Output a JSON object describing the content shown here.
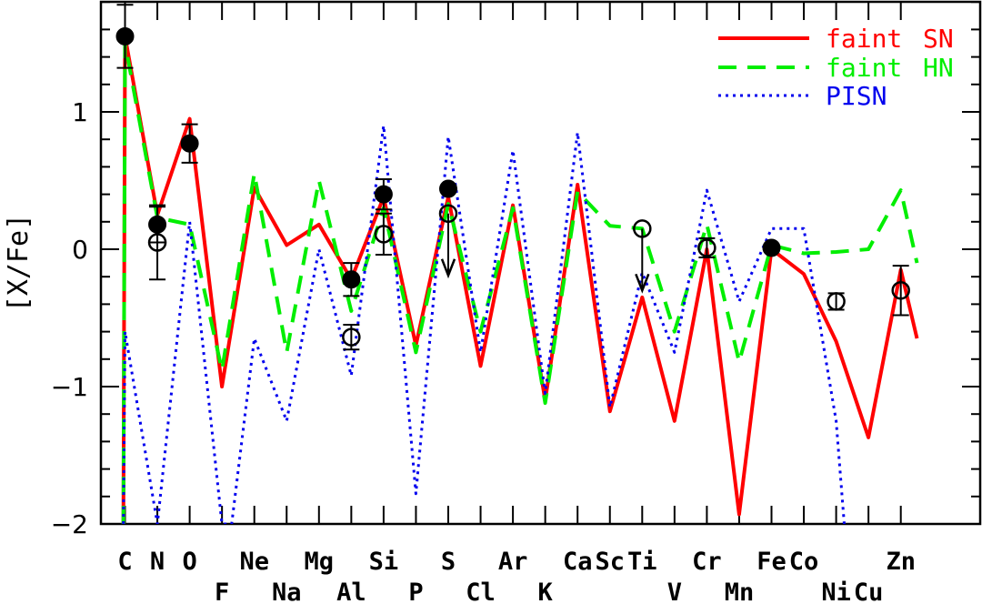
{
  "chart_data": {
    "type": "line",
    "title": "",
    "xlabel": "",
    "ylabel": "[X/Fe]",
    "ylim": [
      -2,
      1.8
    ],
    "yticks": [
      -2,
      -1,
      0,
      1
    ],
    "yticklabels": [
      "−2",
      "−1",
      "0",
      "1"
    ],
    "elements": [
      "C",
      "N",
      "O",
      "F",
      "Ne",
      "Na",
      "Mg",
      "Al",
      "Si",
      "P",
      "S",
      "Cl",
      "Ar",
      "K",
      "Ca",
      "Sc",
      "Ti",
      "V",
      "Cr",
      "Mn",
      "Fe",
      "Co",
      "Ni",
      "Cu",
      "Zn"
    ],
    "z": [
      6,
      7,
      8,
      9,
      10,
      11,
      12,
      13,
      14,
      15,
      16,
      17,
      18,
      19,
      20,
      21,
      22,
      23,
      24,
      25,
      26,
      27,
      28,
      29,
      30
    ],
    "top_row_labels": [
      "C",
      "N",
      "O",
      "Ne",
      "Mg",
      "Si",
      "S",
      "Ar",
      "Ca",
      "Sc",
      "Ti",
      "Cr",
      "Fe",
      "Co",
      "Zn"
    ],
    "bottom_row_labels": [
      "F",
      "Na",
      "Al",
      "P",
      "Cl",
      "K",
      "V",
      "Mn",
      "Ni",
      "Cu"
    ],
    "series": [
      {
        "name": "faint SN",
        "color": "#ff0000",
        "style": "solid",
        "x": [
          5.95,
          6,
          7,
          8,
          9,
          10,
          11,
          12,
          13,
          14,
          15,
          16,
          17,
          18,
          19,
          20,
          21,
          22,
          23,
          24,
          25,
          26,
          27,
          28,
          29,
          30,
          30.5
        ],
        "y": [
          -2.0,
          1.55,
          0.25,
          0.95,
          -1.0,
          0.45,
          0.03,
          0.18,
          -0.22,
          0.38,
          -0.7,
          0.38,
          -0.85,
          0.32,
          -1.1,
          0.47,
          -1.18,
          -0.35,
          -1.25,
          0.0,
          -1.93,
          0.0,
          -0.18,
          -0.67,
          -1.37,
          -0.15,
          -0.65
        ]
      },
      {
        "name": "faint HN",
        "color": "#00ee00",
        "style": "dashed",
        "x": [
          5.95,
          6,
          7,
          8,
          9,
          10,
          11,
          12,
          13,
          14,
          15,
          16,
          17,
          18,
          19,
          20,
          21,
          22,
          23,
          24,
          25,
          26,
          27,
          28,
          29,
          30,
          30.5
        ],
        "y": [
          -2.0,
          1.5,
          0.23,
          0.18,
          -0.88,
          0.55,
          -0.75,
          0.5,
          -0.45,
          0.3,
          -0.75,
          0.33,
          -0.6,
          0.3,
          -1.12,
          0.42,
          0.17,
          0.15,
          -0.6,
          0.18,
          -0.82,
          0.03,
          -0.03,
          -0.02,
          0.0,
          0.43,
          -0.1
        ]
      },
      {
        "name": "PISN",
        "color": "#0000ee",
        "style": "dotted",
        "x": [
          5.95,
          6,
          7,
          8,
          9,
          9.3,
          10,
          11,
          12,
          13,
          14,
          15,
          16,
          17,
          18,
          19,
          20,
          21,
          22,
          23,
          24,
          25,
          26,
          27,
          28,
          28.25
        ],
        "y": [
          -2.0,
          -0.6,
          -2.0,
          0.2,
          -2.0,
          -2.0,
          -0.65,
          -1.25,
          0.0,
          -0.92,
          0.9,
          -1.78,
          0.82,
          -0.75,
          0.72,
          -1.05,
          0.85,
          -1.15,
          -0.17,
          -0.75,
          0.43,
          -0.38,
          0.15,
          0.15,
          -1.25,
          -2.0
        ]
      }
    ],
    "observations": [
      {
        "element": "C",
        "z": 6,
        "y": 1.55,
        "err": 0.23,
        "symbol": "filled"
      },
      {
        "element": "N",
        "z": 7,
        "y": 0.18,
        "err": 0.13,
        "symbol": "filled"
      },
      {
        "element": "N",
        "z": 7,
        "y": 0.05,
        "err": 0.27,
        "symbol": "open"
      },
      {
        "element": "O",
        "z": 8,
        "y": 0.77,
        "err": 0.14,
        "symbol": "filled"
      },
      {
        "element": "Al",
        "z": 13,
        "y": -0.22,
        "err": 0.12,
        "symbol": "filled"
      },
      {
        "element": "Al",
        "z": 13,
        "y": -0.64,
        "err": 0.09,
        "symbol": "open"
      },
      {
        "element": "Si",
        "z": 14,
        "y": 0.4,
        "err": 0.11,
        "symbol": "filled"
      },
      {
        "element": "Si",
        "z": 14,
        "y": 0.11,
        "err": 0.15,
        "symbol": "open"
      },
      {
        "element": "S",
        "z": 16,
        "y": 0.44,
        "err": 0,
        "symbol": "filled"
      },
      {
        "element": "S",
        "z": 16,
        "y": 0.26,
        "err": 0,
        "symbol": "open",
        "upper_limit": true
      },
      {
        "element": "Ti",
        "z": 22,
        "y": 0.15,
        "err": 0,
        "symbol": "open",
        "upper_limit": true
      },
      {
        "element": "Cr",
        "z": 24,
        "y": 0.01,
        "err": 0.07,
        "symbol": "open"
      },
      {
        "element": "Fe",
        "z": 26,
        "y": 0.01,
        "err": 0,
        "symbol": "filled"
      },
      {
        "element": "Ni",
        "z": 28,
        "y": -0.38,
        "err": 0.06,
        "symbol": "open"
      },
      {
        "element": "Zn",
        "z": 30,
        "y": -0.3,
        "err": 0.18,
        "symbol": "open"
      }
    ],
    "legend": {
      "placement": "top-right",
      "entries": [
        {
          "word1": "faint",
          "word2": "SN",
          "color": "#ff0000",
          "style": "solid"
        },
        {
          "word1": "faint",
          "word2": "HN",
          "color": "#00ee00",
          "style": "dashed"
        },
        {
          "word1": "",
          "word2": "PISN",
          "color": "#0000ee",
          "style": "dotted"
        }
      ]
    },
    "grid": false
  }
}
